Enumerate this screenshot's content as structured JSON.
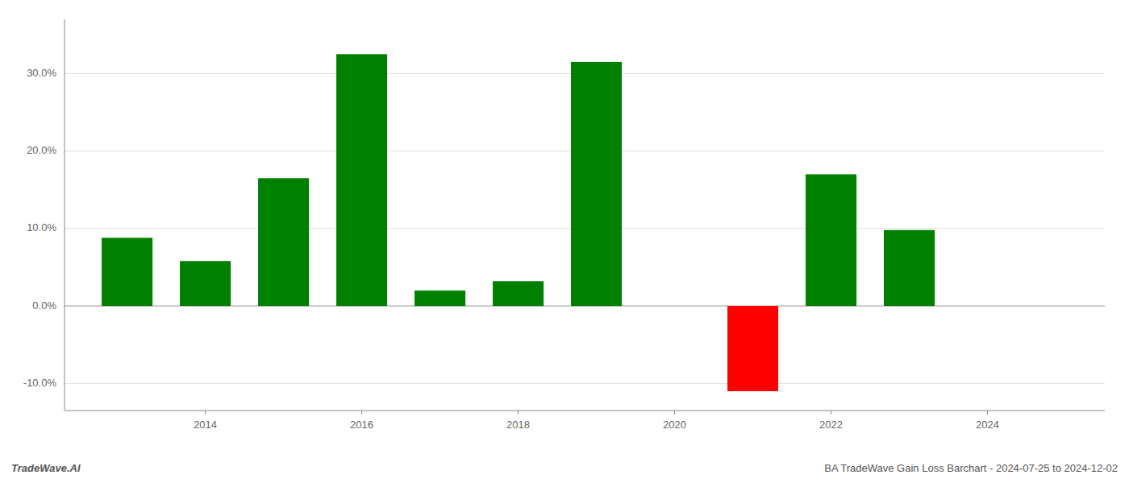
{
  "chart_data": {
    "type": "bar",
    "x": [
      2013,
      2014,
      2015,
      2016,
      2017,
      2018,
      2019,
      2021,
      2022,
      2023
    ],
    "values": [
      0.088,
      0.058,
      0.165,
      0.325,
      0.02,
      0.032,
      0.315,
      -0.11,
      0.17,
      0.098
    ],
    "colors": [
      "#008000",
      "#008000",
      "#008000",
      "#008000",
      "#008000",
      "#008000",
      "#008000",
      "#ff0000",
      "#008000",
      "#008000"
    ],
    "xlim": [
      2012.2,
      2025.5
    ],
    "xticks": [
      2014,
      2016,
      2018,
      2020,
      2022,
      2024
    ],
    "ylim": [
      -0.135,
      0.37
    ],
    "yticks": [
      {
        "value": -0.1,
        "label": "-10.0%"
      },
      {
        "value": 0.0,
        "label": "0.0%"
      },
      {
        "value": 0.1,
        "label": "10.0%"
      },
      {
        "value": 0.2,
        "label": "20.0%"
      },
      {
        "value": 0.3,
        "label": "30.0%"
      }
    ],
    "grid": true,
    "annotations": [
      "TradeWave.AI",
      "BA TradeWave Gain Loss Barchart - 2024-07-25 to 2024-12-02"
    ]
  }
}
